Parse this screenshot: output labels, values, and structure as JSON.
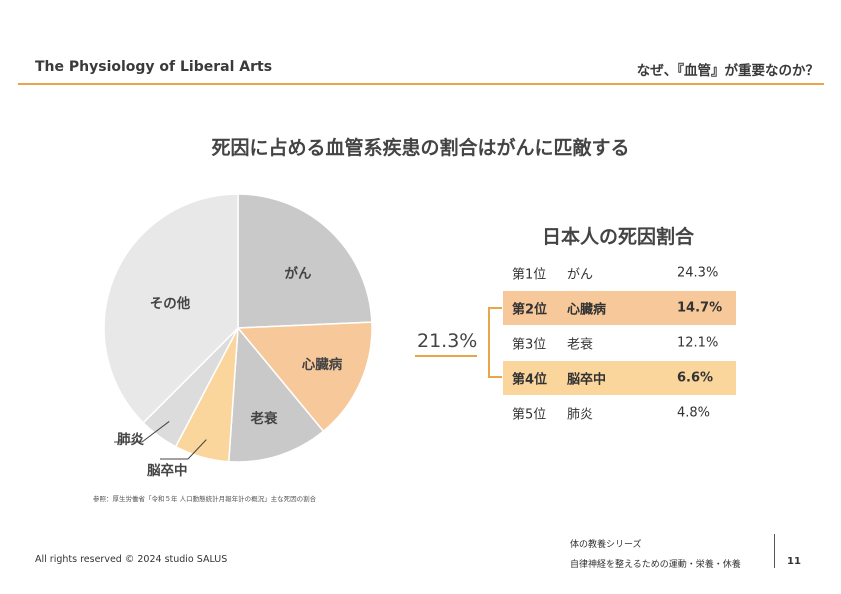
{
  "header": {
    "left_title": "The Physiology of Liberal Arts",
    "right_title": "なぜ、『血管』が重要なのか？",
    "accent_color": "#e8a64a"
  },
  "slide_title": "死因に占める血管系疾患の割合はがんに匹敵する",
  "chart_data": {
    "type": "pie",
    "title": "",
    "start_angle": "12 o'clock, clockwise",
    "slices": [
      {
        "label": "がん",
        "value": 24.3,
        "color": "#c9c9c9"
      },
      {
        "label": "心臓病",
        "value": 14.7,
        "color": "#f7c99a"
      },
      {
        "label": "老衰",
        "value": 12.1,
        "color": "#c9c9c9"
      },
      {
        "label": "脳卒中",
        "value": 6.6,
        "color": "#fad59c"
      },
      {
        "label": "肺炎",
        "value": 4.8,
        "color": "#dcdcdc"
      },
      {
        "label": "その他",
        "value": 37.5,
        "color": "#e8e8e8"
      }
    ]
  },
  "source_note": "参照：厚生労働省「令和５年 人口動態統計月報年計の概況」主な死因の割合",
  "table": {
    "title": "日本人の死因割合",
    "rows": [
      {
        "rank": "第1位",
        "name": "がん",
        "pct": "24.3%",
        "highlight": false
      },
      {
        "rank": "第2位",
        "name": "心臓病",
        "pct": "14.7%",
        "highlight": true
      },
      {
        "rank": "第3位",
        "name": "老衰",
        "pct": "12.1%",
        "highlight": false
      },
      {
        "rank": "第4位",
        "name": "脳卒中",
        "pct": "6.6%",
        "highlight": true
      },
      {
        "rank": "第5位",
        "name": "肺炎",
        "pct": "4.8%",
        "highlight": false
      }
    ],
    "combined_label": "21.3%"
  },
  "footer": {
    "copyright": "All rights reserved © 2024 studio SALUS",
    "series": "体の教養シリーズ",
    "subtitle": "自律神経を整えるための運動・栄養・休養",
    "page_number": "11"
  }
}
